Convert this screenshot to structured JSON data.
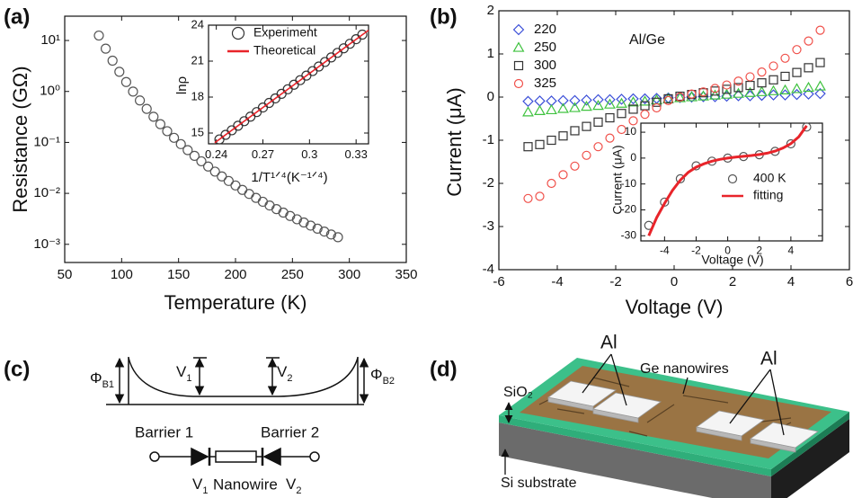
{
  "panels": [
    "(a)",
    "(b)",
    "(c)",
    "(d)"
  ],
  "chart_data": [
    {
      "type": "scatter",
      "x_label": "Temperature (K)",
      "y_label": "Resistance (GΩ)",
      "log_y": true,
      "xlim": [
        50,
        350
      ],
      "xticks": [
        50,
        100,
        150,
        200,
        250,
        300,
        350
      ],
      "ylim": [
        0.00044,
        30
      ],
      "yticks": [
        {
          "value": 0.001,
          "label": "10⁻³"
        },
        {
          "value": 0.01,
          "label": "10⁻²"
        },
        {
          "value": 0.1,
          "label": "10⁻¹"
        },
        {
          "value": 1,
          "label": "10⁰"
        },
        {
          "value": 10,
          "label": "10¹"
        }
      ],
      "x": [
        80,
        86,
        92,
        98,
        104,
        110,
        116,
        122,
        128,
        134,
        140,
        146,
        152,
        158,
        164,
        170,
        176,
        182,
        188,
        194,
        200,
        206,
        212,
        218,
        224,
        230,
        236,
        242,
        248,
        254,
        260,
        266,
        272,
        278,
        284,
        290
      ],
      "series": [
        {
          "marker": "circle",
          "color": "#555555",
          "values": [
            12.5,
            6.92,
            4.02,
            2.43,
            1.53,
            0.995,
            0.665,
            0.455,
            0.319,
            0.228,
            0.166,
            0.123,
            0.0925,
            0.0706,
            0.0545,
            0.0426,
            0.0336,
            0.0267,
            0.0215,
            0.0175,
            0.0143,
            0.0117,
            0.00975,
            0.00815,
            0.00684,
            0.00578,
            0.00491,
            0.00419,
            0.0036,
            0.0031,
            0.00268,
            0.00233,
            0.00203,
            0.00178,
            0.00156,
            0.00138
          ]
        }
      ],
      "inset": {
        "type": "scatter",
        "x_label": "1/T¹ᐟ⁴(K⁻¹ᐟ⁴)",
        "y_label": "lnρ",
        "xlim": [
          0.235,
          0.338
        ],
        "xticks": [
          0.24,
          0.27,
          0.3,
          0.33
        ],
        "ylim": [
          14.1,
          24
        ],
        "yticks": [
          15,
          18,
          21,
          24
        ],
        "series": [
          {
            "name": "Experiment",
            "marker": "circle",
            "color": "#333333",
            "x": [
              0.242,
              0.246,
              0.25,
              0.254,
              0.258,
              0.262,
              0.266,
              0.27,
              0.274,
              0.278,
              0.282,
              0.286,
              0.29,
              0.294,
              0.298,
              0.302,
              0.306,
              0.31,
              0.314,
              0.318,
              0.322,
              0.326,
              0.33,
              0.334
            ],
            "values": [
              14.47,
              14.85,
              15.23,
              15.61,
              15.99,
              16.37,
              16.75,
              17.13,
              17.51,
              17.89,
              18.27,
              18.65,
              19.03,
              19.41,
              19.79,
              20.17,
              20.55,
              20.93,
              21.31,
              21.69,
              22.07,
              22.45,
              22.83,
              23.21
            ]
          },
          {
            "name": "Theoretical",
            "style": "line",
            "color": "#e8242a",
            "x": [
              0.239,
              0.338
            ],
            "values": [
              14.19,
              23.58
            ]
          }
        ]
      }
    },
    {
      "type": "scatter",
      "x_label": "Voltage (V)",
      "y_label": "Current (μA)",
      "annotation": "Al/Ge",
      "xlim": [
        -6,
        6
      ],
      "xticks": [
        -6,
        -4,
        -2,
        0,
        2,
        4,
        6
      ],
      "ylim": [
        -4,
        2
      ],
      "yticks": [
        -4,
        -3,
        -2,
        -1,
        0,
        1,
        2
      ],
      "x": [
        -5,
        -4.6,
        -4.2,
        -3.8,
        -3.4,
        -3,
        -2.6,
        -2.2,
        -1.8,
        -1.4,
        -1,
        -0.6,
        -0.2,
        0.2,
        0.6,
        1,
        1.4,
        1.8,
        2.2,
        2.6,
        3,
        3.4,
        3.8,
        4.2,
        4.6,
        5
      ],
      "series": [
        {
          "name": "220",
          "marker": "diamond",
          "color": "#3b4fd8",
          "values": [
            -0.1,
            -0.09,
            -0.09,
            -0.08,
            -0.08,
            -0.07,
            -0.06,
            -0.06,
            -0.05,
            -0.04,
            -0.04,
            -0.03,
            -0.02,
            -0.01,
            0,
            0.01,
            0.01,
            0.02,
            0.03,
            0.03,
            0.04,
            0.05,
            0.05,
            0.06,
            0.07,
            0.08
          ]
        },
        {
          "name": "250",
          "marker": "triangle",
          "color": "#3fc23f",
          "values": [
            -0.35,
            -0.32,
            -0.3,
            -0.27,
            -0.25,
            -0.22,
            -0.2,
            -0.17,
            -0.15,
            -0.12,
            -0.1,
            -0.07,
            -0.04,
            -0.02,
            0,
            0.02,
            0.04,
            0.06,
            0.08,
            0.1,
            0.12,
            0.14,
            0.16,
            0.19,
            0.22,
            0.25
          ]
        },
        {
          "name": "300",
          "marker": "square",
          "color": "#333333",
          "values": [
            -1.15,
            -1.1,
            -1,
            -0.9,
            -0.78,
            -0.68,
            -0.58,
            -0.48,
            -0.38,
            -0.28,
            -0.2,
            -0.12,
            -0.04,
            0.02,
            0.06,
            0.1,
            0.14,
            0.18,
            0.22,
            0.27,
            0.33,
            0.4,
            0.48,
            0.57,
            0.68,
            0.8
          ]
        },
        {
          "name": "325",
          "marker": "circle",
          "color": "#f0504a",
          "values": [
            -2.35,
            -2.3,
            -2,
            -1.8,
            -1.6,
            -1.35,
            -1.15,
            -0.95,
            -0.75,
            -0.55,
            -0.4,
            -0.25,
            -0.08,
            0,
            0.07,
            0.12,
            0.2,
            0.28,
            0.37,
            0.47,
            0.58,
            0.72,
            0.9,
            1.1,
            1.3,
            1.55
          ]
        }
      ],
      "inset": {
        "type": "scatter",
        "x_label": "Voltage (V)",
        "y_label": "Current (μA)",
        "xlim": [
          -5.5,
          6
        ],
        "xticks": [
          -4,
          -2,
          0,
          2,
          4
        ],
        "ylim": [
          -32,
          13.5
        ],
        "yticks": [
          -30,
          -20,
          -10,
          0,
          10
        ],
        "series": [
          {
            "name": "400 K",
            "marker": "circle",
            "color": "#555555",
            "x": [
              -5,
              -4,
              -3,
              -2,
              -1,
              0,
              1,
              2,
              3,
              4,
              5
            ],
            "values": [
              -26,
              -17,
              -8,
              -3,
              -1.2,
              0,
              0.6,
              1.3,
              2.6,
              5.5,
              12
            ]
          },
          {
            "name": "fitting",
            "style": "line",
            "color": "#e8242a",
            "x": [
              -5,
              -4.5,
              -4,
              -3.5,
              -3,
              -2.5,
              -2,
              -1.5,
              -1,
              -0.5,
              0,
              0.5,
              1,
              1.5,
              2,
              2.5,
              3,
              3.5,
              4,
              4.5,
              5
            ],
            "values": [
              -30,
              -23,
              -17.5,
              -12.5,
              -8.5,
              -5.5,
              -3.5,
              -2.2,
              -1.2,
              -0.5,
              0,
              0.4,
              0.7,
              1,
              1.4,
              1.9,
              2.7,
              3.9,
              5.6,
              8.2,
              12.5
            ]
          }
        ]
      }
    }
  ],
  "diagram_c": {
    "phi_b1": {
      "main": "Φ",
      "sub": "B1"
    },
    "v1": {
      "main": "V",
      "sub": "1"
    },
    "v2": {
      "main": "V",
      "sub": "2"
    },
    "phi_b2": {
      "main": "Φ",
      "sub": "B2"
    },
    "barrier_1": "Barrier 1",
    "barrier_2": "Barrier 2",
    "circuit": {
      "v1": {
        "main": "V",
        "sub": "1"
      },
      "nanowire": "Nanowire",
      "v2": {
        "main": "V",
        "sub": "2"
      }
    }
  },
  "diagram_d": {
    "al_left": "Al",
    "al_right": "Al",
    "ge": "Ge nanowires",
    "sio2": "SiO₂",
    "si": "Si substrate"
  }
}
